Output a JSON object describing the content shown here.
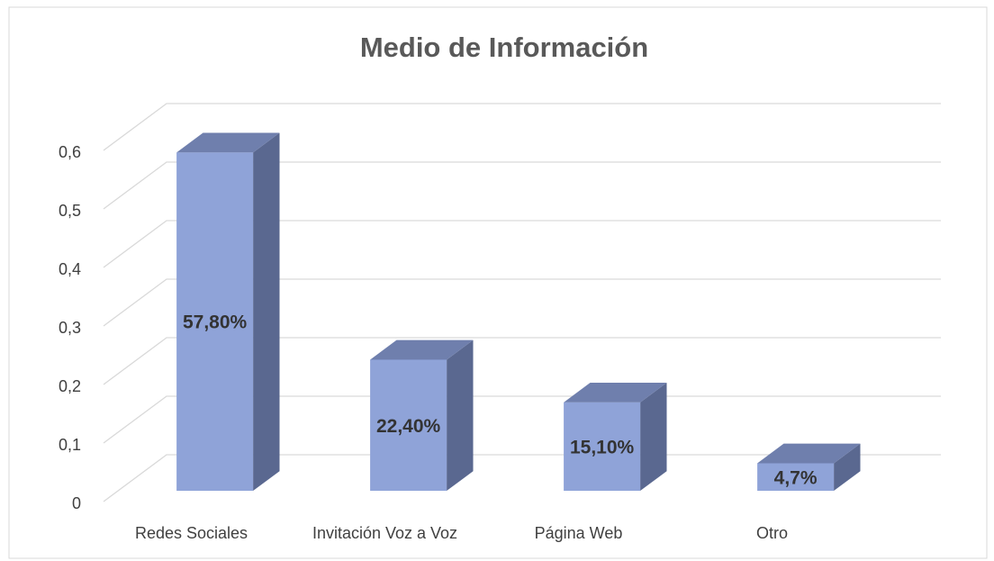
{
  "chart_data": {
    "type": "bar3d",
    "title": "Medio de Información",
    "categories": [
      "Redes Sociales",
      "Invitación Voz a Voz",
      "Página Web",
      "Otro"
    ],
    "values": [
      0.578,
      0.224,
      0.151,
      0.047
    ],
    "value_labels": [
      "57,80%",
      "22,40%",
      "15,10%",
      "4,7%"
    ],
    "color": "#8fa3d8",
    "ylim": [
      0,
      0.6
    ],
    "yticks": [
      0,
      {
        "value": 0.1,
        "label": "0,1"
      },
      {
        "value": 0.2,
        "label": "0,2"
      },
      {
        "value": 0.3,
        "label": "0,3"
      },
      {
        "value": 0.4,
        "label": "0,4"
      },
      {
        "value": 0.5,
        "label": "0,5"
      },
      {
        "value": 0.6,
        "label": "0,6"
      }
    ],
    "grid": true
  }
}
